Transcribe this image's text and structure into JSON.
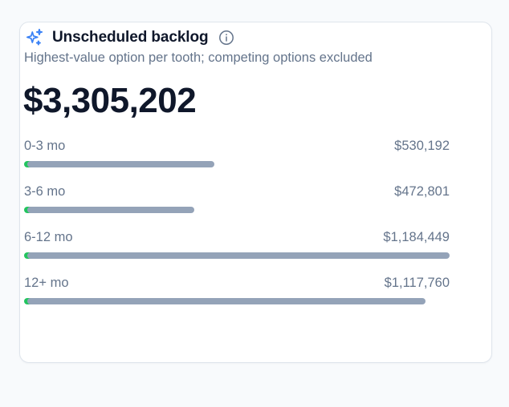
{
  "card": {
    "title": "Unscheduled backlog",
    "subtitle": "Highest-value option per tooth; competing options excluded",
    "total": "$3,305,202",
    "icons": {
      "title_icon": "sparkles-icon",
      "info_icon": "info-icon"
    },
    "colors": {
      "accent": "#3b82f6",
      "bar": "#94a3b8",
      "bar_start": "#22c55e",
      "text_primary": "#0f172a",
      "text_secondary": "#64748b"
    }
  },
  "chart_data": {
    "type": "bar",
    "categories": [
      "0-3 mo",
      "3-6 mo",
      "6-12 mo",
      "12+ mo"
    ],
    "values": [
      530192,
      472801,
      1184449,
      1117760
    ],
    "value_labels": [
      "$530,192",
      "$472,801",
      "$1,184,449",
      "$1,117,760"
    ]
  }
}
